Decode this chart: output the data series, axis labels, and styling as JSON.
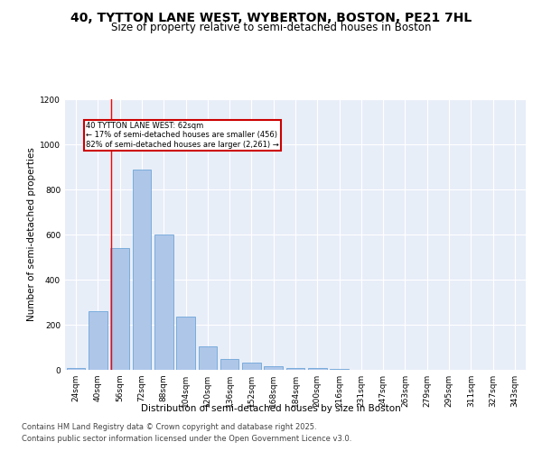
{
  "title": "40, TYTTON LANE WEST, WYBERTON, BOSTON, PE21 7HL",
  "subtitle": "Size of property relative to semi-detached houses in Boston",
  "xlabel": "Distribution of semi-detached houses by size in Boston",
  "ylabel": "Number of semi-detached properties",
  "categories": [
    "24sqm",
    "40sqm",
    "56sqm",
    "72sqm",
    "88sqm",
    "104sqm",
    "120sqm",
    "136sqm",
    "152sqm",
    "168sqm",
    "184sqm",
    "200sqm",
    "216sqm",
    "231sqm",
    "247sqm",
    "263sqm",
    "279sqm",
    "295sqm",
    "311sqm",
    "327sqm",
    "343sqm"
  ],
  "values": [
    10,
    260,
    540,
    890,
    600,
    235,
    105,
    50,
    32,
    18,
    10,
    8,
    3,
    1,
    1,
    0,
    0,
    0,
    1,
    0,
    0
  ],
  "bar_color": "#aec6e8",
  "bar_edge_color": "#5b9bd5",
  "red_line_x": 1.62,
  "annotation_title": "40 TYTTON LANE WEST: 62sqm",
  "annotation_line1": "← 17% of semi-detached houses are smaller (456)",
  "annotation_line2": "82% of semi-detached houses are larger (2,261) →",
  "annotation_box_color": "#ffffff",
  "annotation_box_edge": "#cc0000",
  "footer1": "Contains HM Land Registry data © Crown copyright and database right 2025.",
  "footer2": "Contains public sector information licensed under the Open Government Licence v3.0.",
  "ylim": [
    0,
    1200
  ],
  "yticks": [
    0,
    200,
    400,
    600,
    800,
    1000,
    1200
  ],
  "plot_bg_color": "#e8eef8",
  "title_fontsize": 10,
  "subtitle_fontsize": 8.5,
  "axis_fontsize": 7.5,
  "tick_fontsize": 6.5,
  "footer_fontsize": 6.0
}
